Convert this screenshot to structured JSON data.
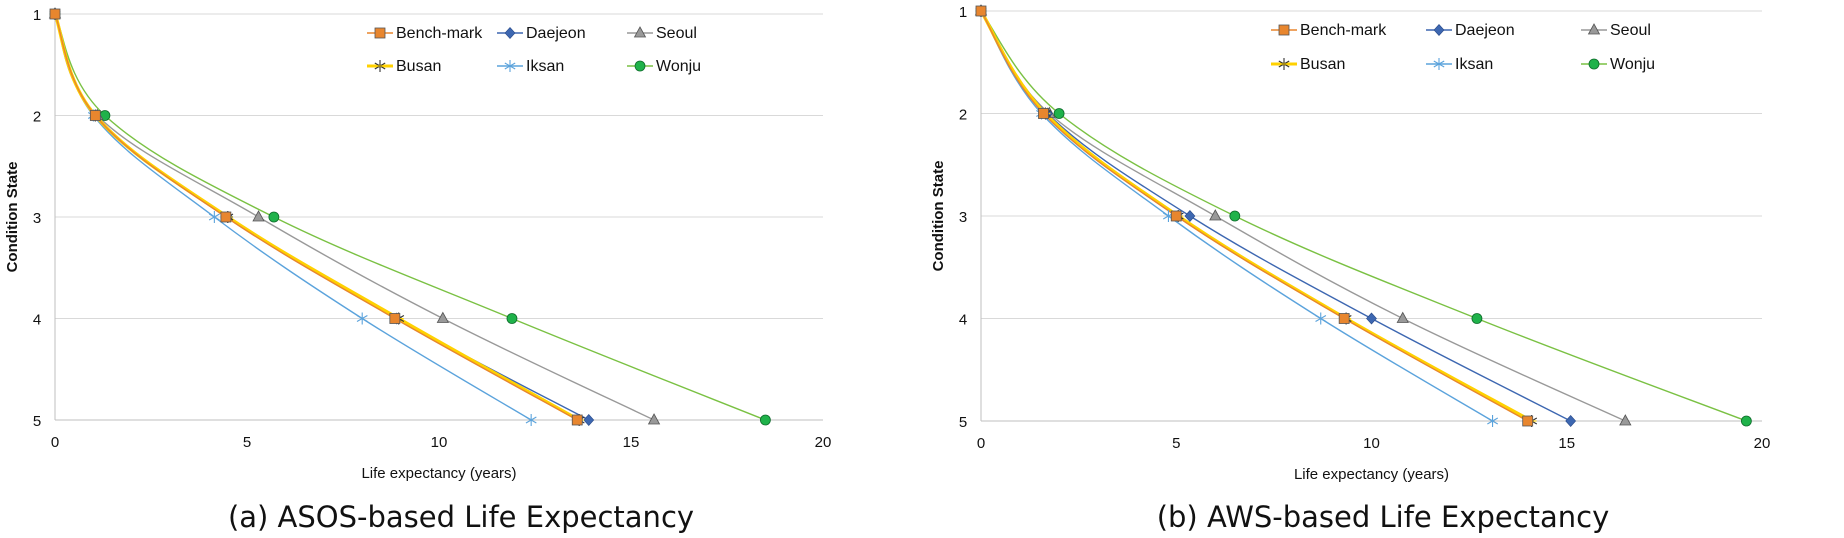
{
  "chart_data": [
    {
      "type": "line",
      "caption": "(a) ASOS-based Life Expectancy",
      "xlabel": "Life expectancy (years)",
      "ylabel": "Condition State",
      "xlim": [
        0,
        20
      ],
      "ylim": [
        1,
        5
      ],
      "y_inverted": true,
      "xticks": [
        0,
        5,
        10,
        15,
        20
      ],
      "yticks": [
        1,
        2,
        3,
        4,
        5
      ],
      "grid": "horizontal",
      "legend": "top-right",
      "series": [
        {
          "name": "Bench-mark",
          "color": "#e8862e",
          "marker": "square",
          "x": [
            0,
            1.05,
            4.45,
            8.85,
            13.6
          ],
          "y": [
            1,
            2,
            3,
            4,
            5
          ]
        },
        {
          "name": "Daejeon",
          "color": "#3d67b1",
          "marker": "diamond",
          "x": [
            0,
            1.05,
            4.5,
            8.9,
            13.9
          ],
          "y": [
            1,
            2,
            3,
            4,
            5
          ]
        },
        {
          "name": "Seoul",
          "color": "#999999",
          "marker": "triangle",
          "x": [
            0,
            1.1,
            5.3,
            10.1,
            15.6
          ],
          "y": [
            1,
            2,
            3,
            4,
            5
          ]
        },
        {
          "name": "Busan",
          "color": "#ffd100",
          "marker": "star",
          "x": [
            0,
            1.05,
            4.5,
            8.95,
            13.65
          ],
          "y": [
            1,
            2,
            3,
            4,
            5
          ]
        },
        {
          "name": "Iksan",
          "color": "#5ba3dc",
          "marker": "asterisk",
          "x": [
            0,
            1.0,
            4.15,
            8.0,
            12.4
          ],
          "y": [
            1,
            2,
            3,
            4,
            5
          ]
        },
        {
          "name": "Wonju",
          "color": "#7ac143",
          "marker": "circle",
          "x": [
            0,
            1.3,
            5.7,
            11.9,
            18.5
          ],
          "y": [
            1,
            2,
            3,
            4,
            5
          ]
        }
      ]
    },
    {
      "type": "line",
      "caption": "(b) AWS-based Life Expectancy",
      "xlabel": "Life expectancy (years)",
      "ylabel": "Condition State",
      "xlim": [
        0,
        20
      ],
      "ylim": [
        1,
        5
      ],
      "y_inverted": true,
      "xticks": [
        0,
        5,
        10,
        15,
        20
      ],
      "yticks": [
        1,
        2,
        3,
        4,
        5
      ],
      "grid": "horizontal",
      "legend": "top-right",
      "series": [
        {
          "name": "Bench-mark",
          "color": "#e8862e",
          "marker": "square",
          "x": [
            0,
            1.6,
            5.0,
            9.3,
            14.0
          ],
          "y": [
            1,
            2,
            3,
            4,
            5
          ]
        },
        {
          "name": "Daejeon",
          "color": "#3d67b1",
          "marker": "diamond",
          "x": [
            0,
            1.7,
            5.35,
            10.0,
            15.1
          ],
          "y": [
            1,
            2,
            3,
            4,
            5
          ]
        },
        {
          "name": "Seoul",
          "color": "#999999",
          "marker": "triangle",
          "x": [
            0,
            1.75,
            6.0,
            10.8,
            16.5
          ],
          "y": [
            1,
            2,
            3,
            4,
            5
          ]
        },
        {
          "name": "Busan",
          "color": "#ffd100",
          "marker": "star",
          "x": [
            0,
            1.65,
            5.05,
            9.35,
            14.1
          ],
          "y": [
            1,
            2,
            3,
            4,
            5
          ]
        },
        {
          "name": "Iksan",
          "color": "#5ba3dc",
          "marker": "asterisk",
          "x": [
            0,
            1.55,
            4.8,
            8.7,
            13.1
          ],
          "y": [
            1,
            2,
            3,
            4,
            5
          ]
        },
        {
          "name": "Wonju",
          "color": "#7ac143",
          "marker": "circle",
          "x": [
            0,
            2.0,
            6.5,
            12.7,
            19.6
          ],
          "y": [
            1,
            2,
            3,
            4,
            5
          ]
        }
      ]
    }
  ]
}
